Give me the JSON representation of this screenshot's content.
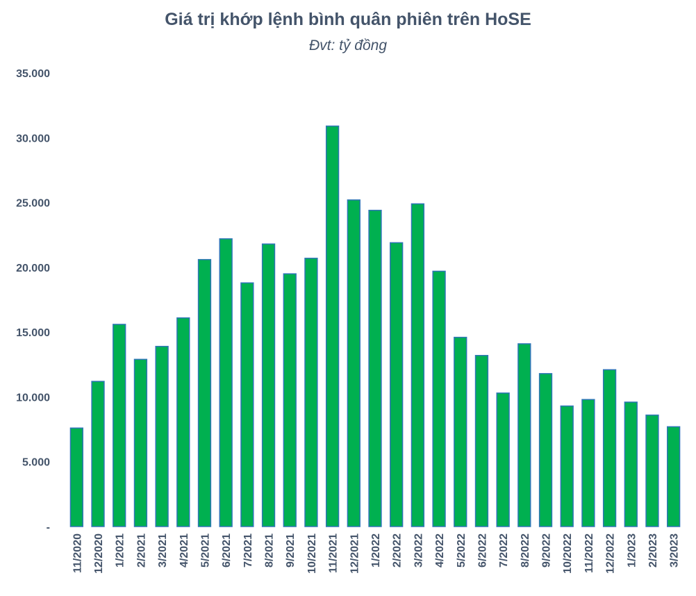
{
  "chart_data": {
    "type": "bar",
    "title": "Giá trị khớp lệnh bình quân phiên trên HoSE",
    "subtitle": "Đvt: tỷ đồng",
    "categories": [
      "11/2020",
      "12/2020",
      "1/2021",
      "2/2021",
      "3/2021",
      "4/2021",
      "5/2021",
      "6/2021",
      "7/2021",
      "8/2021",
      "9/2021",
      "10/2021",
      "11/2021",
      "12/2021",
      "1/2022",
      "2/2022",
      "3/2022",
      "4/2022",
      "5/2022",
      "6/2022",
      "7/2022",
      "8/2022",
      "9/2022",
      "10/2022",
      "11/2022",
      "12/2022",
      "1/2023",
      "2/2023",
      "3/2023"
    ],
    "values": [
      7600,
      11200,
      15600,
      12900,
      13900,
      16100,
      20600,
      22200,
      18800,
      21800,
      19500,
      20700,
      30900,
      25200,
      24400,
      21900,
      24900,
      19700,
      14600,
      13200,
      10300,
      14100,
      11800,
      9300,
      9800,
      12100,
      9600,
      8600,
      7700
    ],
    "ylim": [
      0,
      35000
    ],
    "yticks": [
      0,
      5000,
      10000,
      15000,
      20000,
      25000,
      30000,
      35000
    ],
    "ytick_labels": [
      "-",
      "5.000",
      "10.000",
      "15.000",
      "20.000",
      "25.000",
      "30.000",
      "35.000"
    ],
    "grid": false,
    "colors": {
      "bar_fill": "#00b050",
      "bar_edge": "#2e75b6",
      "text": "#44546a"
    }
  }
}
